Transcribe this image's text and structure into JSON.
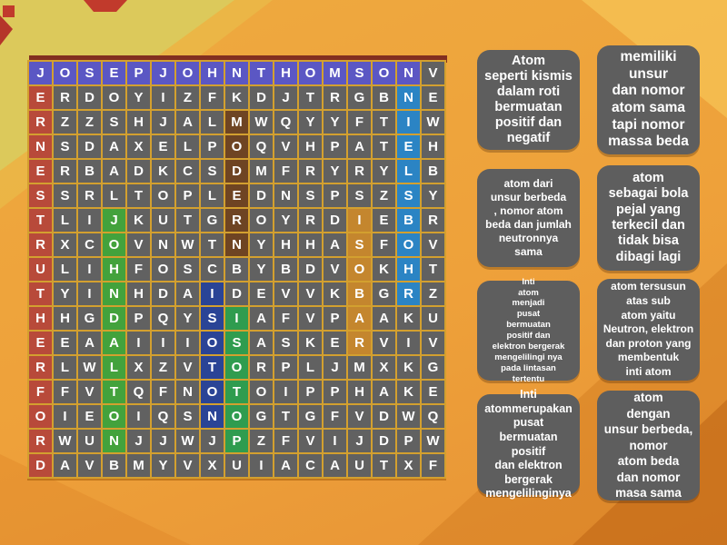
{
  "app": {
    "name": "word-search-puzzle",
    "topic": "teori atom"
  },
  "colors": {
    "background_orange": "#eea13a",
    "background_yellow_corner": "#dcc95b",
    "tile_default": "#616161",
    "tile_letter": "#ffffff",
    "grid_gap_gold": "#d3a02f",
    "grid_top_shadow": "#822f20",
    "card_background": "#5e5e5e",
    "card_text": "#ffffff"
  },
  "grid": {
    "rows": [
      "JOSEPJOHNTHOMSONV",
      "ERDOYIZFKDJTRGBNE",
      "RZZSHJALMWQYYFTIW",
      "NSDAXELPOQVHPATEH",
      "ERBADKCSDMFRYRYLB",
      "SSRLTOPLEDNSPSZSY",
      "TLIJKUTGROYRDIEBR",
      "RXCOVNWTNYHHASFOV",
      "ULIHFOSCBYBDVOKHT",
      "TYINHDAIDEVVKBGRZ",
      "HHGDPQYSIAFVPAAKU",
      "EEAAIIIOSASKERVIV",
      "RLWLXZVTORPLJMXKG",
      "FFVTQFNOTOIPPHAKE",
      "OIEOIQSNOGTGFVDWQ",
      "RWUNJJWJPZFVIJDPW",
      "DAVBMYVXUIACAUTXF"
    ],
    "highlights": [
      {
        "word": "JOSEPJOHNTHOMSON",
        "color": "#5b57c4",
        "row": 1,
        "col": 1,
        "dir": "h",
        "len": 16
      },
      {
        "word": "ERNESTRUTHERFORD",
        "color": "#b84a3a",
        "row": 2,
        "col": 1,
        "dir": "v",
        "len": 16
      },
      {
        "word": "NIELSBOHR",
        "color": "#2b84c4",
        "row": 2,
        "col": 16,
        "dir": "v",
        "len": 9
      },
      {
        "word": "MODERN",
        "color": "#6e4423",
        "row": 3,
        "col": 9,
        "dir": "v",
        "len": 6
      },
      {
        "word": "JOHNDALTON",
        "color": "#43a23c",
        "row": 7,
        "col": 4,
        "dir": "v",
        "len": 10
      },
      {
        "word": "ISOBAR",
        "color": "#c4862e",
        "row": 7,
        "col": 14,
        "dir": "v",
        "len": 6
      },
      {
        "word": "ISOTON",
        "color": "#2a4496",
        "row": 10,
        "col": 8,
        "dir": "v",
        "len": 6
      },
      {
        "word": "ISOTOP",
        "color": "#2f9c4f",
        "row": 11,
        "col": 9,
        "dir": "v",
        "len": 6
      }
    ]
  },
  "clues": [
    {
      "text": "Atom\nseperti kismis\ndalam roti\nbermuatan\npositif dan\nnegatif"
    },
    {
      "text": "memiliki\nunsur\ndan nomor\natom sama\ntapi nomor\nmassa beda"
    },
    {
      "text": "atom dari\nunsur berbeda\n, nomor atom\nbeda dan jumlah\nneutronnya\nsama"
    },
    {
      "text": "atom\nsebagai bola\npejal yang\nterkecil dan\ntidak bisa\ndibagi lagi"
    },
    {
      "text": "Inti\natom\nmenjadi\npusat\nbermuatan\npositif dan\nelektron bergerak\nmengelilingi nya\npada lintasan\ntertentu"
    },
    {
      "text": "atom tersusun\natas sub\natom yaitu\nNeutron, elektron\ndan proton yang\nmembentuk\ninti atom"
    },
    {
      "text": "Inti\natommerupakan\npusat\nbermuatan\npositif\ndan elektron\nbergerak\nmengelilinginya"
    },
    {
      "text": "atom\ndengan\nunsur berbeda,\nnomor\natom beda\ndan nomor\nmasa sama"
    }
  ]
}
